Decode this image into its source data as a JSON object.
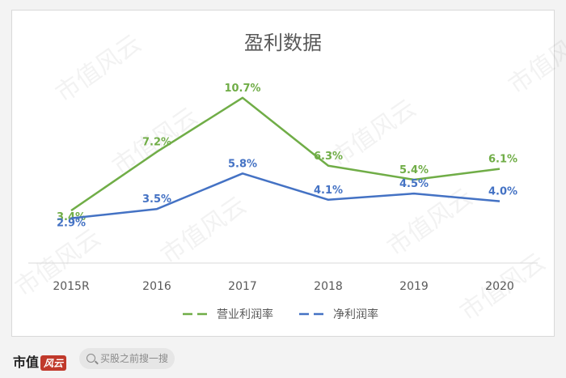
{
  "chart_data": {
    "type": "line",
    "title": "盈利数据",
    "categories": [
      "2015R",
      "2016",
      "2017",
      "2018",
      "2019",
      "2020"
    ],
    "series": [
      {
        "name": "营业利润率",
        "values": [
          3.4,
          7.2,
          10.7,
          6.3,
          5.4,
          6.1
        ],
        "labels": [
          "3.4%",
          "7.2%",
          "10.7%",
          "6.3%",
          "5.4%",
          "6.1%"
        ],
        "color": "#70ad47"
      },
      {
        "name": "净利润率",
        "values": [
          2.9,
          3.5,
          5.8,
          4.1,
          4.5,
          4.0
        ],
        "labels": [
          "2.9%",
          "3.5%",
          "5.8%",
          "4.1%",
          "4.5%",
          "4.0%"
        ],
        "color": "#4472c4"
      }
    ],
    "ylim": [
      0,
      12
    ],
    "grid": false,
    "legend_position": "bottom"
  },
  "watermark": "市值风云",
  "footer": {
    "brand": "市值",
    "brand_logo_text": "风云",
    "search_placeholder": "买股之前搜一搜"
  }
}
